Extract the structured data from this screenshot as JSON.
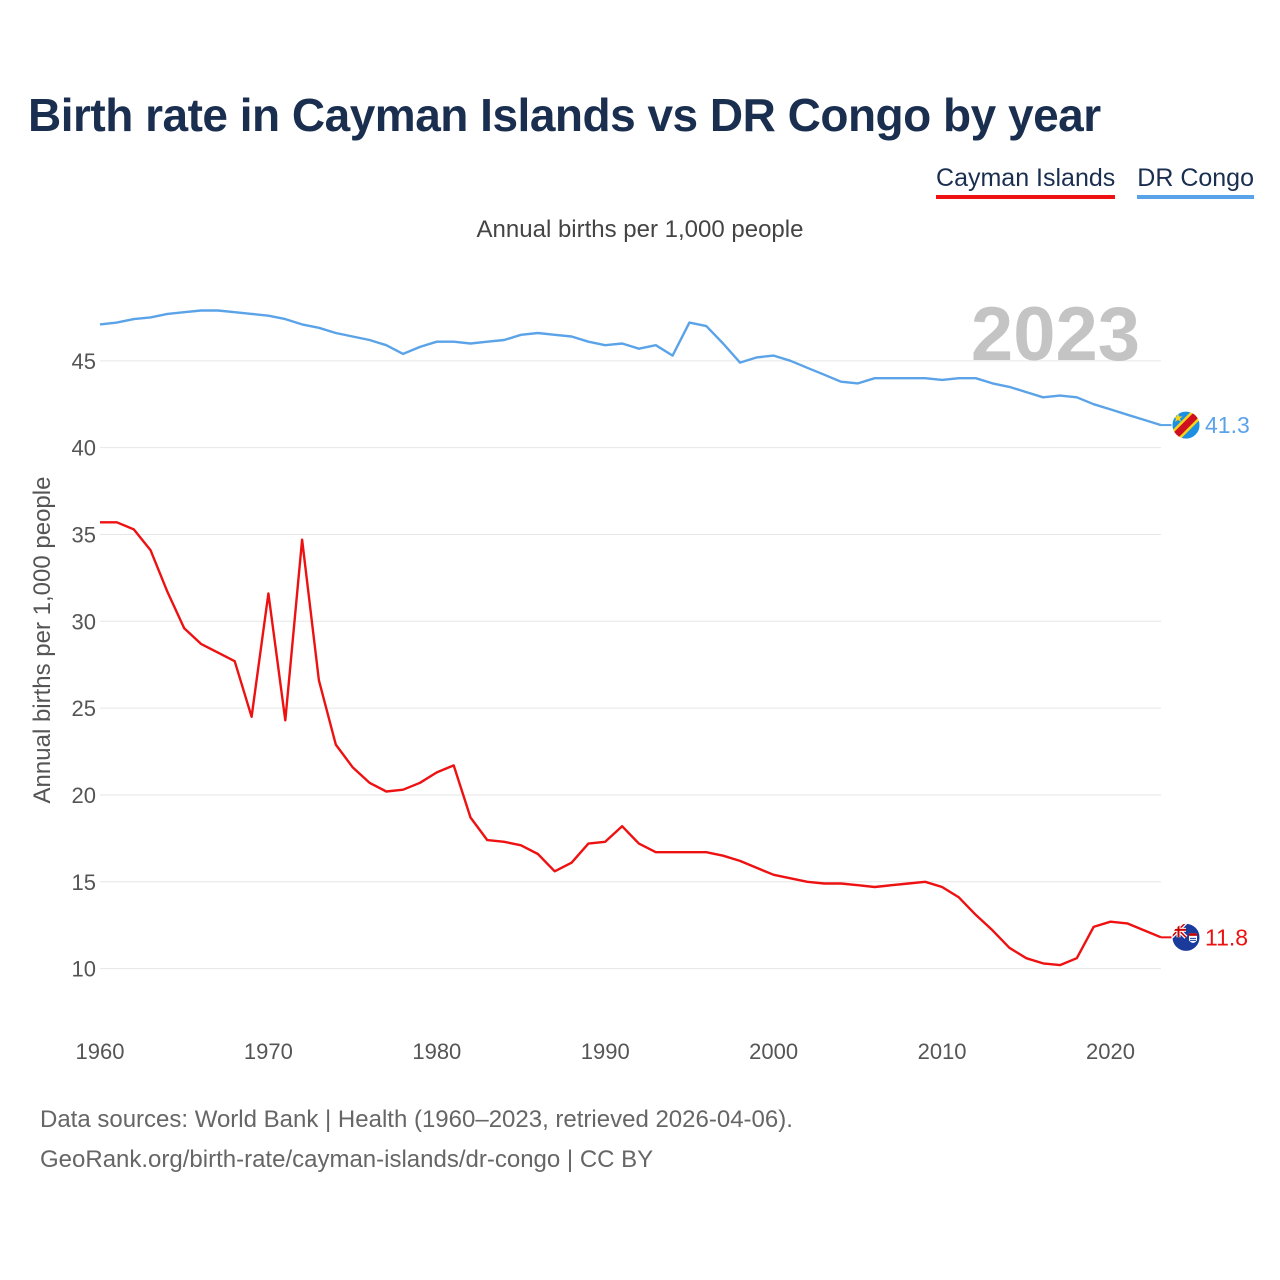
{
  "title": "Birth rate in Cayman Islands vs DR Congo by year",
  "subtitle": "Annual births per 1,000 people",
  "legend": [
    {
      "name": "Cayman Islands",
      "color": "#ee1111"
    },
    {
      "name": "DR Congo",
      "color": "#5ba3e8"
    }
  ],
  "year_label": "2023",
  "footer": {
    "line1": "Data sources: World Bank | Health (1960–2023, retrieved 2026-04-06).",
    "line2": "GeoRank.org/birth-rate/cayman-islands/dr-congo | CC BY"
  },
  "chart_data": {
    "type": "line",
    "title": "Birth rate in Cayman Islands vs DR Congo by year",
    "xlabel": "",
    "ylabel": "Annual births per 1,000 people",
    "xlim": [
      1960,
      2023
    ],
    "ylim": [
      7.5,
      50
    ],
    "x_ticks": [
      1960,
      1970,
      1980,
      1990,
      2000,
      2010,
      2020
    ],
    "y_ticks": [
      10,
      15,
      20,
      25,
      30,
      35,
      40,
      45
    ],
    "grid": true,
    "series": [
      {
        "name": "Cayman Islands",
        "color": "#ee1111",
        "last_value": "11.8",
        "flag": "cayman-islands-flag-icon",
        "x": [
          1960,
          1961,
          1962,
          1963,
          1964,
          1965,
          1966,
          1967,
          1968,
          1969,
          1970,
          1971,
          1972,
          1973,
          1974,
          1975,
          1976,
          1977,
          1978,
          1979,
          1980,
          1981,
          1982,
          1983,
          1984,
          1985,
          1986,
          1987,
          1988,
          1989,
          1990,
          1991,
          1992,
          1993,
          1994,
          1995,
          1996,
          1997,
          1998,
          1999,
          2000,
          2001,
          2002,
          2003,
          2004,
          2005,
          2006,
          2007,
          2008,
          2009,
          2010,
          2011,
          2012,
          2013,
          2014,
          2015,
          2016,
          2017,
          2018,
          2019,
          2020,
          2021,
          2022,
          2023
        ],
        "values": [
          35.7,
          35.7,
          35.3,
          34.1,
          31.7,
          29.6,
          28.7,
          28.2,
          27.7,
          24.5,
          31.6,
          24.3,
          34.7,
          26.6,
          22.9,
          21.6,
          20.7,
          20.2,
          20.3,
          20.7,
          21.3,
          21.7,
          18.7,
          17.4,
          17.3,
          17.1,
          16.6,
          15.6,
          16.1,
          17.2,
          17.3,
          18.2,
          17.2,
          16.7,
          16.7,
          16.7,
          16.7,
          16.5,
          16.2,
          15.8,
          15.4,
          15.2,
          15.0,
          14.9,
          14.9,
          14.8,
          14.7,
          14.8,
          14.9,
          15.0,
          14.7,
          14.1,
          13.1,
          12.2,
          11.2,
          10.6,
          10.3,
          10.2,
          10.6,
          12.4,
          12.7,
          12.6,
          12.2,
          11.8
        ]
      },
      {
        "name": "DR Congo",
        "color": "#5ba3e8",
        "last_value": "41.3",
        "flag": "dr-congo-flag-icon",
        "x": [
          1960,
          1961,
          1962,
          1963,
          1964,
          1965,
          1966,
          1967,
          1968,
          1969,
          1970,
          1971,
          1972,
          1973,
          1974,
          1975,
          1976,
          1977,
          1978,
          1979,
          1980,
          1981,
          1982,
          1983,
          1984,
          1985,
          1986,
          1987,
          1988,
          1989,
          1990,
          1991,
          1992,
          1993,
          1994,
          1995,
          1996,
          1997,
          1998,
          1999,
          2000,
          2001,
          2002,
          2003,
          2004,
          2005,
          2006,
          2007,
          2008,
          2009,
          2010,
          2011,
          2012,
          2013,
          2014,
          2015,
          2016,
          2017,
          2018,
          2019,
          2020,
          2021,
          2022,
          2023
        ],
        "values": [
          47.1,
          47.2,
          47.4,
          47.5,
          47.7,
          47.8,
          47.9,
          47.9,
          47.8,
          47.7,
          47.6,
          47.4,
          47.1,
          46.9,
          46.6,
          46.4,
          46.2,
          45.9,
          45.4,
          45.8,
          46.1,
          46.1,
          46.0,
          46.1,
          46.2,
          46.5,
          46.6,
          46.5,
          46.4,
          46.1,
          45.9,
          46.0,
          45.7,
          45.9,
          45.3,
          47.2,
          47.0,
          46.0,
          44.9,
          45.2,
          45.3,
          45.0,
          44.6,
          44.2,
          43.8,
          43.7,
          44.0,
          44.0,
          44.0,
          44.0,
          43.9,
          44.0,
          44.0,
          43.7,
          43.5,
          43.2,
          42.9,
          43.0,
          42.9,
          42.5,
          42.2,
          41.9,
          41.6,
          41.3
        ]
      }
    ]
  }
}
